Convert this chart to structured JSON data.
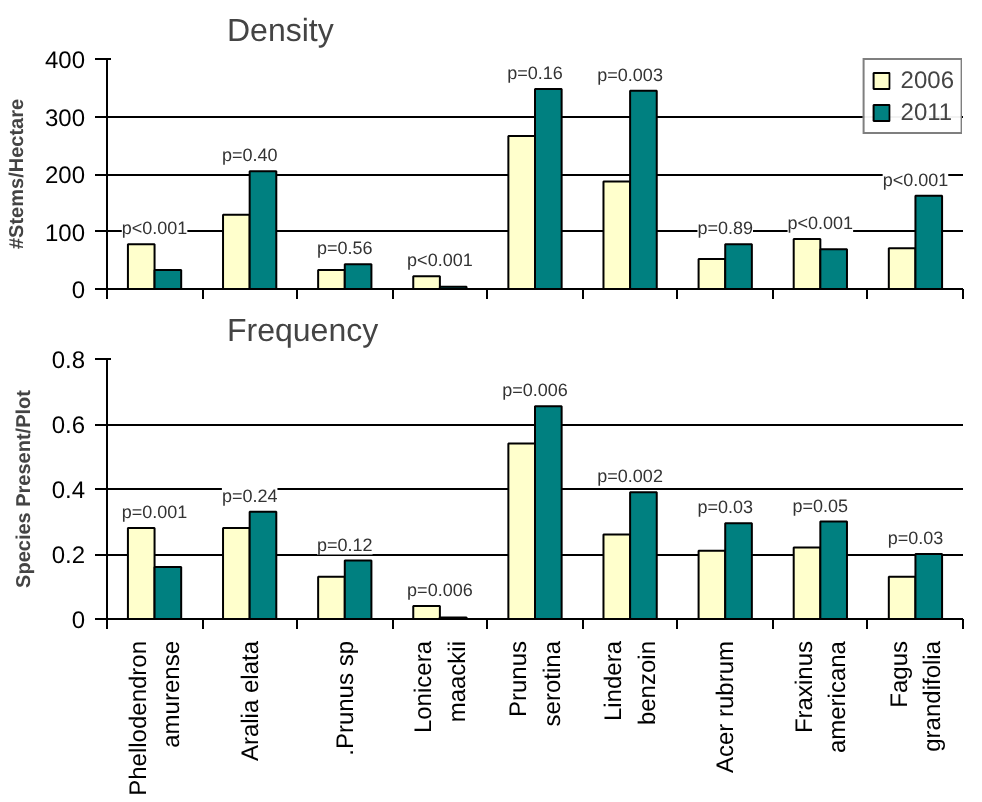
{
  "chart_data": [
    {
      "type": "bar",
      "title": "Density",
      "ylabel": "#Stems/Hectare",
      "categories": [
        "Phellodendron amurense",
        "Aralia elata",
        ".Prunus sp",
        "Lonicera maackii",
        "Prunus serotina",
        "Lindera benzoin",
        "Acer rubrum",
        "Fraxinus americana",
        "Fagus grandifolia"
      ],
      "series": [
        {
          "name": "2006",
          "color": "#ffffcc",
          "values": [
            78,
            129,
            33,
            22,
            266,
            187,
            52,
            87,
            71
          ]
        },
        {
          "name": "2011",
          "color": "#008080",
          "values": [
            33,
            205,
            43,
            4,
            348,
            345,
            78,
            69,
            162
          ]
        }
      ],
      "ylim": [
        0,
        400
      ],
      "yticks": [
        0,
        100,
        200,
        300,
        400
      ],
      "grid": "y",
      "legend": "top right",
      "tick_labels": "y",
      "annotations": [
        {
          "text": "p<0.001",
          "x": "Phellodendron amurense",
          "y": 78
        },
        {
          "text": "p=0.40",
          "x": "Aralia elata",
          "y": 205
        },
        {
          "text": "p=0.56",
          "x": ".Prunus sp",
          "y": 43
        },
        {
          "text": "p<0.001",
          "x": "Lonicera maackii",
          "y": 22
        },
        {
          "text": "p=0.16",
          "x": "Prunus serotina",
          "y": 348
        },
        {
          "text": "p=0.003",
          "x": "Lindera benzoin",
          "y": 345
        },
        {
          "text": "p=0.89",
          "x": "Acer rubrum",
          "y": 78
        },
        {
          "text": "p<0.001",
          "x": "Fraxinus americana",
          "y": 87
        },
        {
          "text": "p<0.001",
          "x": "Fagus grandifolia",
          "y": 162
        }
      ]
    },
    {
      "type": "bar",
      "title": "Frequency",
      "ylabel": "Species Present/Plot",
      "categories": [
        "Phellodendron amurense",
        "Aralia elata",
        ".Prunus sp",
        "Lonicera maackii",
        "Prunus serotina",
        "Lindera benzoin",
        "Acer rubrum",
        "Fraxinus americana",
        "Fagus grandifolia"
      ],
      "series": [
        {
          "color": "#ffffcc",
          "values": [
            0.28,
            0.28,
            0.13,
            0.04,
            0.54,
            0.26,
            0.21,
            0.22,
            0.13
          ]
        },
        {
          "color": "#008080",
          "values": [
            0.16,
            0.33,
            0.18,
            0.005,
            0.655,
            0.39,
            0.295,
            0.3,
            0.2
          ]
        }
      ],
      "ylim": [
        0,
        0.8
      ],
      "yticks": [
        0,
        0.2,
        0.4,
        0.6,
        0.8
      ],
      "grid": "y",
      "annotations": [
        {
          "text": "p=0.001",
          "x": "Phellodendron amurense",
          "y": 0.28
        },
        {
          "text": "p=0.24",
          "x": "Aralia elata",
          "y": 0.33
        },
        {
          "text": "p=0.12",
          "x": ".Prunus sp",
          "y": 0.18
        },
        {
          "text": "p=0.006",
          "x": "Lonicera maackii",
          "y": 0.04
        },
        {
          "text": "p=0.006",
          "x": "Prunus serotina",
          "y": 0.655
        },
        {
          "text": "p=0.002",
          "x": "Lindera benzoin",
          "y": 0.39
        },
        {
          "text": "p=0.03",
          "x": "Acer rubrum",
          "y": 0.295
        },
        {
          "text": "p=0.05",
          "x": "Fraxinus americana",
          "y": 0.3
        },
        {
          "text": "p=0.03",
          "x": "Fagus grandifolia",
          "y": 0.2
        }
      ]
    }
  ]
}
